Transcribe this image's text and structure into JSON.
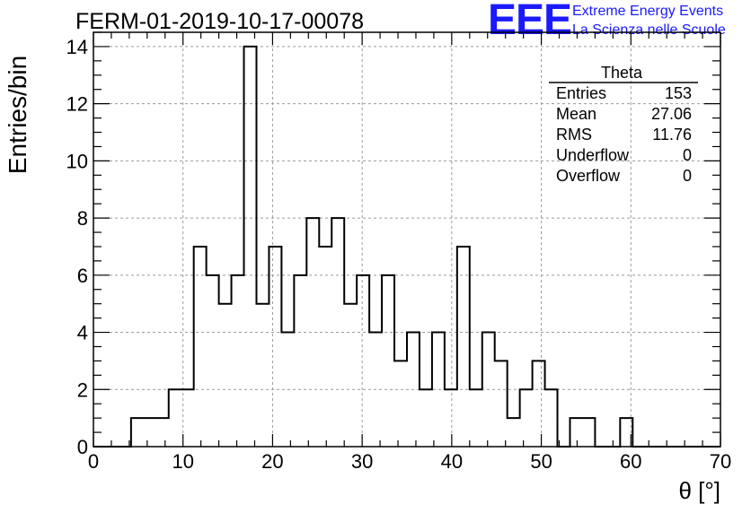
{
  "header": {
    "title": "FERM-01-2019-10-17-00078",
    "logo_text": "EEE",
    "logo_line1": "Extreme Energy Events",
    "logo_line2": "La Scienza nelle Scuole"
  },
  "stats": {
    "name": "Theta",
    "rows": [
      {
        "label": "Entries",
        "value": "153"
      },
      {
        "label": "Mean",
        "value": "27.06"
      },
      {
        "label": "RMS",
        "value": "11.76"
      },
      {
        "label": "Underflow",
        "value": "0"
      },
      {
        "label": "Overflow",
        "value": "0"
      }
    ]
  },
  "colors": {
    "logo": "#1a1aff",
    "histogram": "#000000",
    "grid": "#9a9a9a"
  },
  "chart_data": {
    "type": "bar",
    "style": "step-histogram",
    "xlabel": "θ [°]",
    "ylabel": "Entries/bin",
    "xlim": [
      0,
      70
    ],
    "ylim": [
      0,
      14.5
    ],
    "bin_width": 1.4,
    "x_start": 0,
    "values": [
      0,
      0,
      0,
      1,
      1,
      1,
      2,
      2,
      7,
      6,
      5,
      6,
      14,
      5,
      7,
      4,
      6,
      8,
      7,
      8,
      5,
      6,
      4,
      6,
      3,
      4,
      2,
      4,
      2,
      7,
      2,
      4,
      3,
      1,
      2,
      3,
      2,
      0,
      1,
      1,
      0,
      0,
      1,
      0,
      0,
      0,
      0,
      0,
      0,
      0
    ],
    "x_ticks": [
      "0",
      "10",
      "20",
      "30",
      "40",
      "50",
      "60",
      "70"
    ],
    "y_ticks": [
      "0",
      "2",
      "4",
      "6",
      "8",
      "10",
      "12",
      "14"
    ],
    "grid": true,
    "legend": "top-right"
  }
}
